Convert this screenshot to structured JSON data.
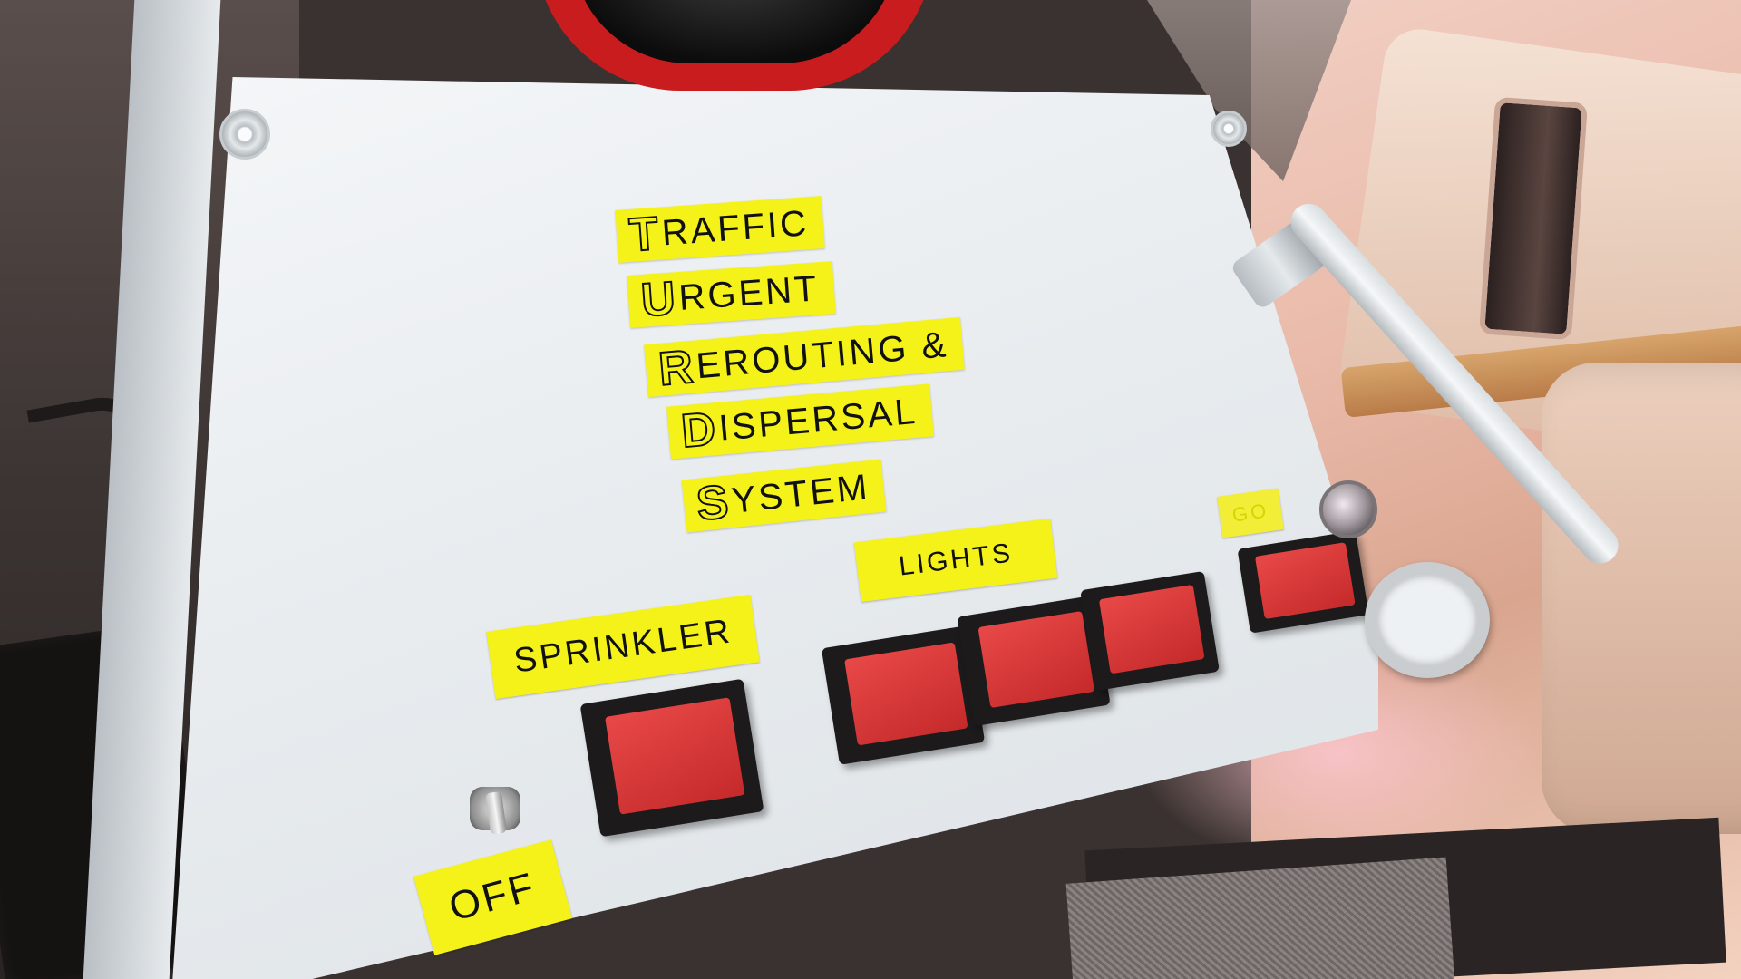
{
  "panel": {
    "title_lines": [
      {
        "initial": "T",
        "rest": "RAFFIC"
      },
      {
        "initial": "U",
        "rest": "RGENT"
      },
      {
        "initial": "R",
        "rest": "EROUTING &"
      },
      {
        "initial": "D",
        "rest": "ISPERSAL"
      },
      {
        "initial": "S",
        "rest": "YSTEM"
      }
    ],
    "labels": {
      "sprinkler": "SPRINKLER",
      "lights": "LIGHTS",
      "off": "OFF",
      "obscured": "GO"
    }
  },
  "colors": {
    "label_yellow": "#f5f21a",
    "button_red": "#d63535",
    "panel_grey": "#e8ecef",
    "knob_red": "#c91c1e"
  }
}
